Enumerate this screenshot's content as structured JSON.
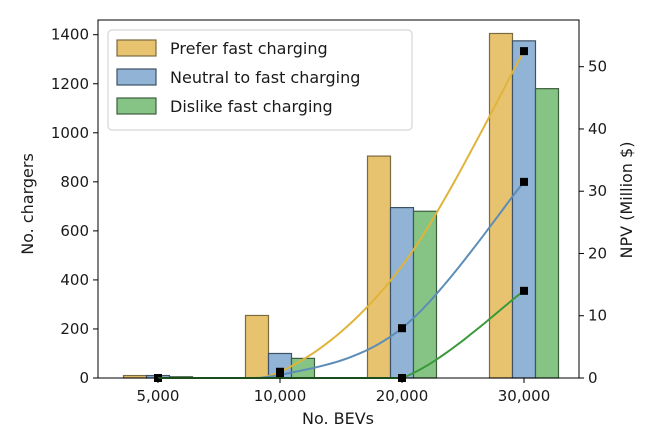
{
  "chart_data": {
    "type": "bar",
    "categories": [
      "5,000",
      "10,000",
      "20,000",
      "30,000"
    ],
    "xlabel": "No. BEVs",
    "ylabel": "No. chargers",
    "y2label": "NPV (Million $)",
    "ylim": [
      0,
      1460
    ],
    "y2lim": [
      0,
      57.5
    ],
    "yticks": [
      0,
      200,
      400,
      600,
      800,
      1000,
      1200,
      1400
    ],
    "y2ticks": [
      0,
      10,
      20,
      30,
      40,
      50
    ],
    "legend_position": "top-left",
    "grid": false,
    "series": [
      {
        "name": "Prefer fast charging",
        "color": "#E8C36F",
        "edge": "#7a6a40",
        "values": [
          10,
          255,
          905,
          1405
        ]
      },
      {
        "name": "Neutral to fast charging",
        "color": "#90B3D6",
        "edge": "#3d5266",
        "values": [
          10,
          100,
          695,
          1375
        ]
      },
      {
        "name": "Dislike fast charging",
        "color": "#86C485",
        "edge": "#3d5e3d",
        "values": [
          5,
          80,
          680,
          1180
        ]
      }
    ],
    "npv_series": [
      {
        "color": "#E0B43A",
        "values": [
          0,
          1,
          18,
          52.5
        ],
        "markers": [
          true,
          true,
          false,
          true
        ]
      },
      {
        "color": "#5B8DB8",
        "values": [
          0,
          0.5,
          8,
          31.5
        ],
        "markers": [
          false,
          true,
          true,
          true
        ]
      },
      {
        "color": "#3A9A3A",
        "values": [
          0,
          0,
          0,
          14
        ],
        "markers": [
          false,
          false,
          true,
          true
        ]
      }
    ]
  }
}
